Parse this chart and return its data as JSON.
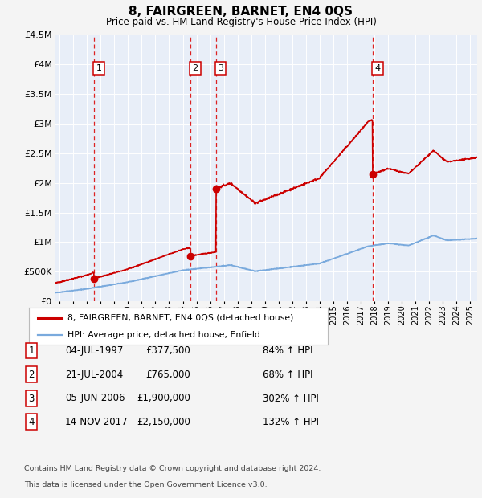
{
  "title": "8, FAIRGREEN, BARNET, EN4 0QS",
  "subtitle": "Price paid vs. HM Land Registry's House Price Index (HPI)",
  "transactions": [
    {
      "num": 1,
      "year_x": 1997.51,
      "price": 377500
    },
    {
      "num": 2,
      "year_x": 2004.55,
      "price": 765000
    },
    {
      "num": 3,
      "year_x": 2006.42,
      "price": 1900000
    },
    {
      "num": 4,
      "year_x": 2017.87,
      "price": 2150000
    }
  ],
  "legend_entries": [
    {
      "label": "8, FAIRGREEN, BARNET, EN4 0QS (detached house)",
      "color": "#cc0000",
      "lw": 2.0
    },
    {
      "label": "HPI: Average price, detached house, Enfield",
      "color": "#7aaadd",
      "lw": 1.5
    }
  ],
  "table_rows": [
    {
      "num": 1,
      "date": "04-JUL-1997",
      "price": "£377,500",
      "pct": "84% ↑ HPI"
    },
    {
      "num": 2,
      "date": "21-JUL-2004",
      "price": "£765,000",
      "pct": "68% ↑ HPI"
    },
    {
      "num": 3,
      "date": "05-JUN-2006",
      "price": "£1,900,000",
      "pct": "302% ↑ HPI"
    },
    {
      "num": 4,
      "date": "14-NOV-2017",
      "price": "£2,150,000",
      "pct": "132% ↑ HPI"
    }
  ],
  "footer_line1": "Contains HM Land Registry data © Crown copyright and database right 2024.",
  "footer_line2": "This data is licensed under the Open Government Licence v3.0.",
  "ylim": [
    0,
    4500000
  ],
  "xlim_start": 1994.7,
  "xlim_end": 2025.5,
  "fig_bg": "#f4f4f4",
  "plot_bg": "#e8eef8",
  "red_color": "#cc0000",
  "blue_color": "#7aaadd",
  "white": "#ffffff",
  "grid_color": "#ffffff",
  "vline_color": "#dd2222"
}
